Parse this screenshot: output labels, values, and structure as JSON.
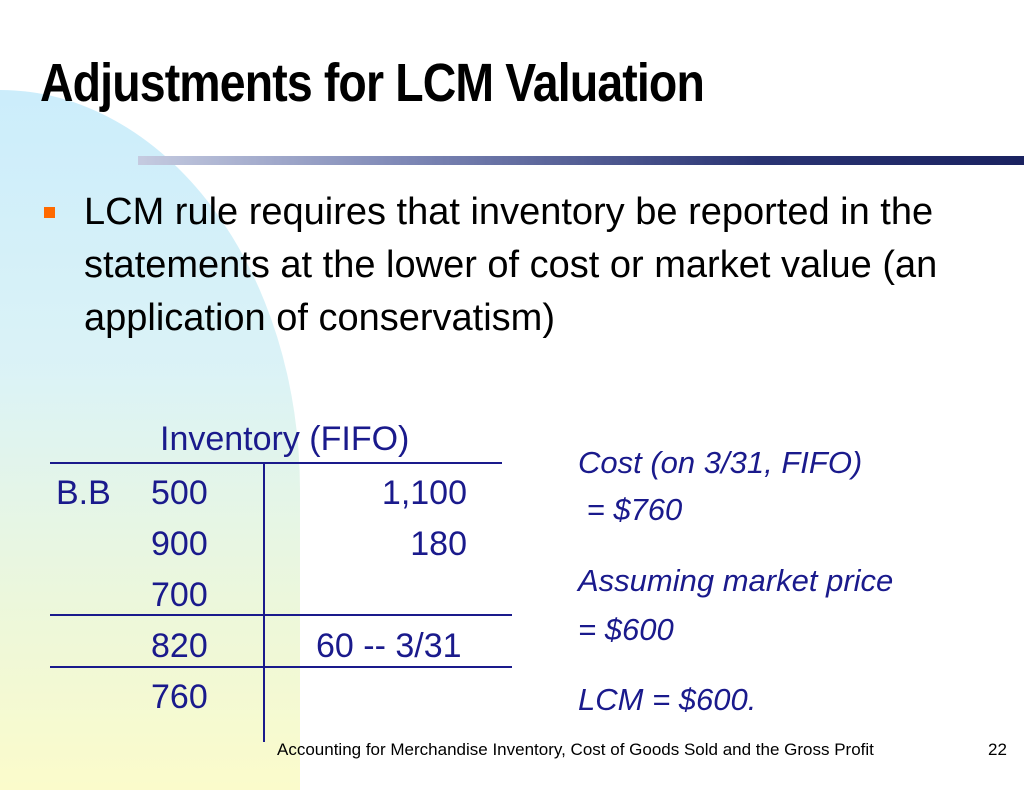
{
  "slide": {
    "title": "Adjustments for LCM Valuation",
    "bullet": "LCM rule requires that inventory be reported in the statements at the lower of cost or market value (an application of conservatism)"
  },
  "t_account": {
    "title": "Inventory (FIFO)",
    "bb_label": "B.B",
    "debits": [
      "500",
      "900",
      "700",
      "820",
      "760"
    ],
    "credits": [
      "1,100",
      "180",
      "60 -- 3/31"
    ]
  },
  "notes": {
    "cost_line1": "Cost (on 3/31, FIFO)",
    "cost_line2": " = $760",
    "market_line1": "Assuming market price",
    "market_line2": "= $600",
    "lcm": "LCM = $600."
  },
  "footer": {
    "text": "Accounting for Merchandise Inventory, Cost of Goods Sold and the Gross Profit",
    "page": "22"
  },
  "colors": {
    "accent_bullet": "#ff6a00",
    "table_text": "#1a1a8c"
  }
}
